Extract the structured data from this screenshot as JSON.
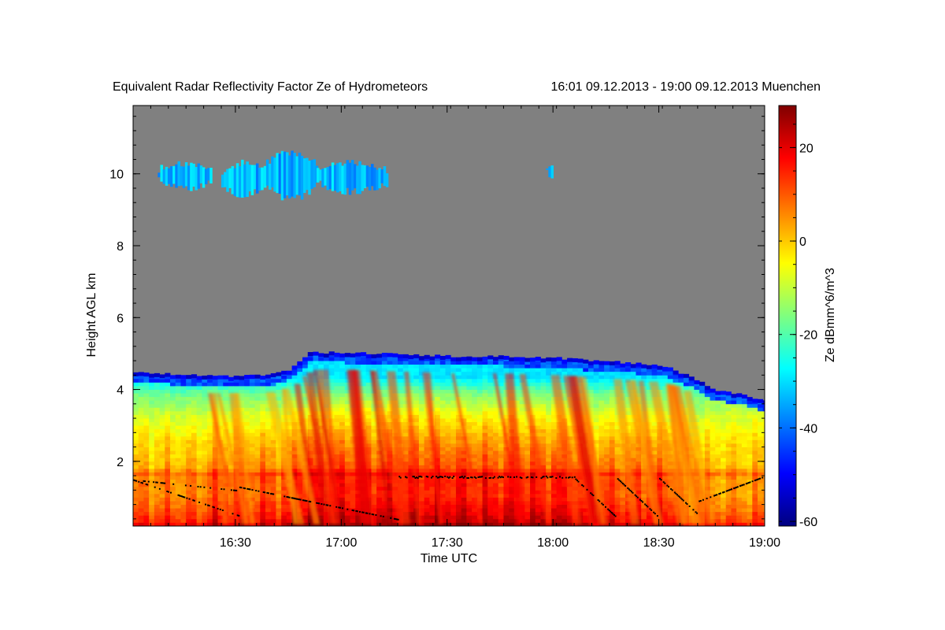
{
  "chart_data": {
    "type": "heatmap",
    "title": "Equivalent Radar Reflectivity Factor Ze of Hydrometeors",
    "subtitle": "16:01 09.12.2013 - 19:00 09.12.2013 Muenchen",
    "xlabel": "Time UTC",
    "ylabel": "Height AGL km",
    "colorbar_label": "Ze dBmm^6/m^3",
    "x_ticks": [
      "16:30",
      "17:00",
      "17:30",
      "18:00",
      "18:30",
      "19:00"
    ],
    "x_tick_minutes": [
      29,
      59,
      89,
      119,
      149,
      179
    ],
    "x_range_minutes": [
      0,
      179
    ],
    "y_ticks": [
      2,
      4,
      6,
      8,
      10
    ],
    "ylim": [
      0.2,
      11.9
    ],
    "colorbar_ticks": [
      20,
      0,
      -20,
      -40,
      -60
    ],
    "colorbar_range": [
      -61,
      29
    ],
    "background_color": "#808080",
    "colormap": [
      "#00007f",
      "#0000ff",
      "#007fff",
      "#00ffff",
      "#7fff7f",
      "#ffff00",
      "#ff7f00",
      "#ff0000",
      "#7f0000"
    ],
    "echo_top_km": [
      [
        0,
        4.4
      ],
      [
        10,
        4.35
      ],
      [
        20,
        4.3
      ],
      [
        30,
        4.3
      ],
      [
        40,
        4.35
      ],
      [
        45,
        4.5
      ],
      [
        50,
        4.95
      ],
      [
        60,
        4.95
      ],
      [
        75,
        4.9
      ],
      [
        90,
        4.85
      ],
      [
        105,
        4.85
      ],
      [
        120,
        4.8
      ],
      [
        135,
        4.7
      ],
      [
        150,
        4.6
      ],
      [
        160,
        4.2
      ],
      [
        165,
        3.9
      ],
      [
        172,
        3.8
      ],
      [
        179,
        3.6
      ]
    ],
    "upper_cloud_patches": [
      {
        "t_start": 7,
        "t_end": 22,
        "base_km": 9.6,
        "top_km": 10.3
      },
      {
        "t_start": 25,
        "t_end": 37,
        "base_km": 9.4,
        "top_km": 10.3
      },
      {
        "t_start": 37,
        "t_end": 52,
        "base_km": 9.3,
        "top_km": 10.6
      },
      {
        "t_start": 52,
        "t_end": 72,
        "base_km": 9.5,
        "top_km": 10.3
      },
      {
        "t_start": 117,
        "t_end": 119,
        "base_km": 9.9,
        "top_km": 10.3
      }
    ],
    "reflectivity_profile": {
      "levels_km": [
        0.2,
        0.3,
        0.6,
        1.0,
        1.6,
        1.7,
        2.5,
        3.2,
        3.8,
        4.3
      ],
      "ze_dbz": [
        24,
        20,
        16,
        12,
        12,
        8,
        2,
        -6,
        -16,
        -30
      ]
    },
    "bright_band_km": 1.65
  }
}
